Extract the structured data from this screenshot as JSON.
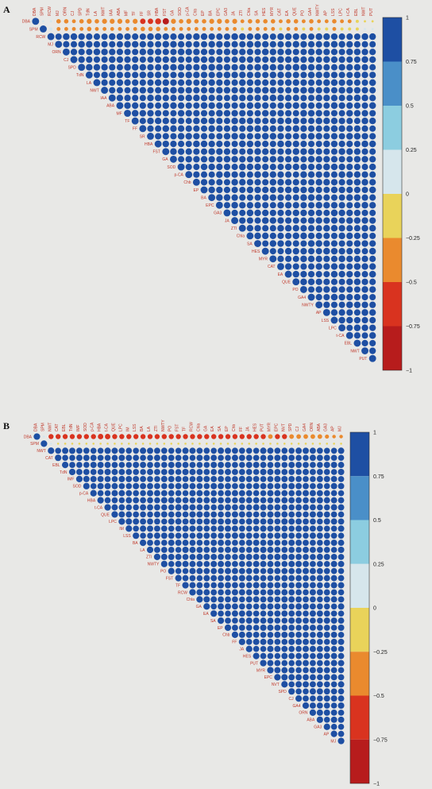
{
  "colors": {
    "background": "#e8e8e6",
    "label_red": "#c0392b",
    "scale": [
      "#b71c1c",
      "#d9331f",
      "#ea8a2e",
      "#e9d35a",
      "#d6e6ec",
      "#8ccde0",
      "#4a8fc8",
      "#1e4fa3"
    ]
  },
  "chart_data": [
    {
      "panel": "A",
      "type": "heatmap",
      "style": "correlation-circles-upper-triangle",
      "variables": [
        "DBA",
        "SPM",
        "RCW",
        "MJ",
        "ORN",
        "CJ",
        "SPD",
        "TdN",
        "LA",
        "NWT",
        "IAA",
        "ABA",
        "MF",
        "TF",
        "FF",
        "SR",
        "HBA",
        "FST",
        "GA",
        "SOD",
        "p-CA",
        "Chb",
        "EP",
        "BA",
        "EPC",
        "GA3",
        "JA",
        "ZTI",
        "Chla",
        "SA",
        "HES",
        "MYR",
        "CAT",
        "EA",
        "QUE",
        "PO",
        "GA4",
        "NWTY",
        "AP",
        "LSS",
        "LPC",
        "t-CA",
        "EBL",
        "NWT",
        "PUT"
      ],
      "r_first_row": [
        1,
        0.1,
        0.1,
        -0.4,
        -0.4,
        -0.3,
        -0.4,
        -0.5,
        -0.4,
        -0.5,
        -0.5,
        -0.5,
        -0.4,
        -0.5,
        -0.6,
        -0.6,
        -0.7,
        -0.8,
        -0.5,
        -0.4,
        -0.5,
        -0.4,
        -0.4,
        -0.5,
        -0.5,
        -0.4,
        -0.5,
        -0.3,
        -0.4,
        -0.4,
        -0.4,
        -0.4,
        -0.3,
        -0.4,
        -0.4,
        -0.3,
        -0.4,
        -0.3,
        -0.3,
        -0.4,
        -0.3,
        -0.3,
        -0.2,
        -0.1,
        -0.1
      ],
      "r_second_row": [
        0.1,
        1,
        0.2,
        -0.3,
        -0.3,
        -0.3,
        -0.3,
        -0.4,
        -0.3,
        -0.3,
        -0.3,
        -0.3,
        -0.3,
        -0.3,
        -0.4,
        -0.4,
        -0.4,
        -0.3,
        -0.3,
        -0.3,
        -0.3,
        -0.3,
        -0.3,
        -0.3,
        -0.3,
        -0.3,
        -0.3,
        -0.2,
        -0.3,
        -0.3,
        -0.3,
        -0.3,
        -0.2,
        -0.3,
        -0.3,
        -0.2,
        -0.3,
        -0.2,
        -0.2,
        -0.3,
        -0.2,
        -0.2,
        -0.2,
        0.1,
        0.1
      ],
      "r_remaining_typical": 0.92,
      "color_scale": {
        "ticks": [
          "1",
          "0.75",
          "0.5",
          "0.25",
          "0",
          "−0.25",
          "−0.5",
          "−0.75",
          "−1"
        ],
        "range": [
          -1,
          1
        ]
      }
    },
    {
      "panel": "B",
      "type": "heatmap",
      "style": "correlation-circles-upper-triangle",
      "variables": [
        "DBA",
        "SPM",
        "NWT",
        "CAT",
        "EBL",
        "TdN",
        "IMF",
        "SOD",
        "p-CA",
        "HBA",
        "t-CA",
        "QUE",
        "LPC",
        "IM",
        "LSS",
        "BA",
        "LA",
        "ZTI",
        "NWTY",
        "PO",
        "FST",
        "TF",
        "RCW",
        "Chla",
        "GA",
        "EA",
        "SA",
        "EP",
        "Chb",
        "FF",
        "JA",
        "HES",
        "PUT",
        "MYR",
        "EPC",
        "NVT",
        "SPD",
        "CJ",
        "GA4",
        "ORN",
        "ABA",
        "GA3",
        "AP",
        "MJ"
      ],
      "r_first_row": [
        1,
        0.1,
        -0.6,
        -0.6,
        -0.6,
        -0.6,
        -0.6,
        -0.6,
        -0.6,
        -0.7,
        -0.7,
        -0.6,
        -0.6,
        -0.6,
        -0.6,
        -0.6,
        -0.6,
        -0.6,
        -0.6,
        -0.6,
        -0.6,
        -0.6,
        -0.6,
        -0.6,
        -0.6,
        -0.6,
        -0.6,
        -0.6,
        -0.6,
        -0.6,
        -0.6,
        -0.6,
        -0.6,
        -0.5,
        -0.6,
        -0.6,
        -0.5,
        -0.5,
        -0.5,
        -0.5,
        -0.5,
        -0.4,
        -0.3,
        -0.3
      ],
      "r_second_row": [
        0.1,
        1,
        0.1,
        -0.1,
        -0.1,
        -0.1,
        -0.1,
        -0.1,
        -0.1,
        -0.1,
        -0.1,
        -0.1,
        -0.1,
        -0.1,
        -0.1,
        -0.1,
        -0.1,
        -0.1,
        -0.1,
        -0.1,
        -0.1,
        -0.1,
        -0.1,
        -0.1,
        -0.1,
        -0.1,
        -0.1,
        -0.1,
        -0.1,
        -0.1,
        -0.1,
        -0.1,
        -0.1,
        -0.1,
        -0.1,
        -0.1,
        -0.1,
        -0.1,
        -0.1,
        -0.1,
        -0.1,
        -0.1,
        -0.1,
        -0.1
      ],
      "r_remaining_typical": 0.95,
      "color_scale": {
        "ticks": [
          "1",
          "0.75",
          "0.5",
          "0.25",
          "0",
          "−0.25",
          "−0.5",
          "−0.75",
          "−1"
        ],
        "range": [
          -1,
          1
        ]
      }
    }
  ]
}
